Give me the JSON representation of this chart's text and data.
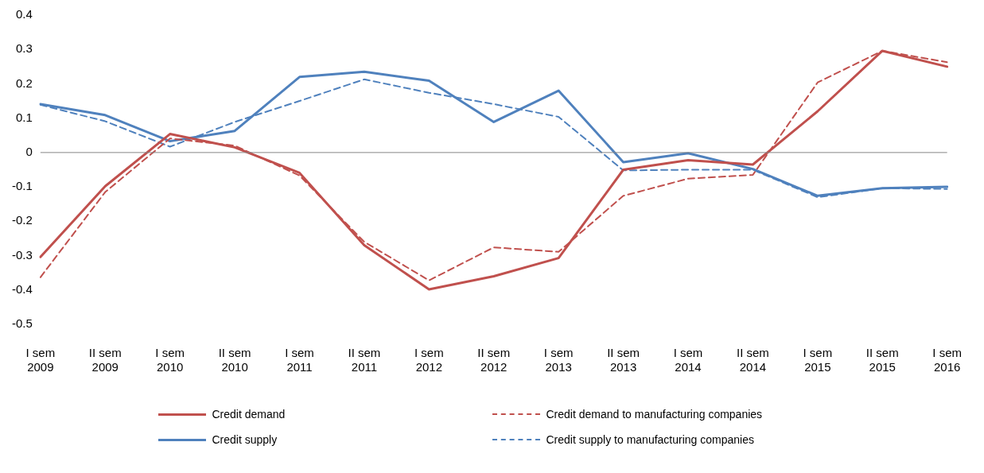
{
  "chart_data": {
    "type": "line",
    "categories": [
      "I sem 2009",
      "II sem 2009",
      "I sem 2010",
      "II sem 2010",
      "I sem 2011",
      "II sem 2011",
      "I sem 2012",
      "II sem 2012",
      "I sem 2013",
      "II sem 2013",
      "I sem 2014",
      "II sem 2014",
      "I sem 2015",
      "II sem 2015",
      "I sem 2016"
    ],
    "series": [
      {
        "name": "Credit demand",
        "color": "#c0504d",
        "line_style": "solid",
        "values": [
          -0.304,
          -0.098,
          0.054,
          0.015,
          -0.059,
          -0.27,
          -0.398,
          -0.36,
          -0.307,
          -0.05,
          -0.022,
          -0.035,
          0.12,
          0.296,
          0.25
        ]
      },
      {
        "name": "Credit demand to manufacturing companies",
        "color": "#c0504d",
        "line_style": "dashed",
        "values": [
          -0.363,
          -0.115,
          0.041,
          0.02,
          -0.067,
          -0.26,
          -0.372,
          -0.276,
          -0.289,
          -0.126,
          -0.076,
          -0.065,
          0.204,
          0.296,
          0.263
        ]
      },
      {
        "name": "Credit supply",
        "color": "#4f81bd",
        "line_style": "solid",
        "values": [
          0.141,
          0.109,
          0.033,
          0.063,
          0.22,
          0.235,
          0.209,
          0.089,
          0.18,
          -0.028,
          -0.002,
          -0.048,
          -0.126,
          -0.104,
          -0.1
        ]
      },
      {
        "name": "Credit supply to manufacturing companies",
        "color": "#4f81bd",
        "line_style": "dashed",
        "values": [
          0.139,
          0.091,
          0.017,
          0.089,
          0.15,
          0.213,
          0.174,
          0.141,
          0.104,
          -0.052,
          -0.05,
          -0.05,
          -0.13,
          -0.104,
          -0.106
        ]
      }
    ],
    "ylim": [
      -0.5,
      0.4
    ],
    "yticks": [
      -0.5,
      -0.4,
      -0.3,
      -0.2,
      -0.1,
      0,
      0.1,
      0.2,
      0.3,
      0.4
    ],
    "ref_lines": [
      {
        "axis": "y",
        "value": 0,
        "color": "#868686"
      }
    ],
    "grid": false,
    "legend": "bottom",
    "marker": "none"
  }
}
